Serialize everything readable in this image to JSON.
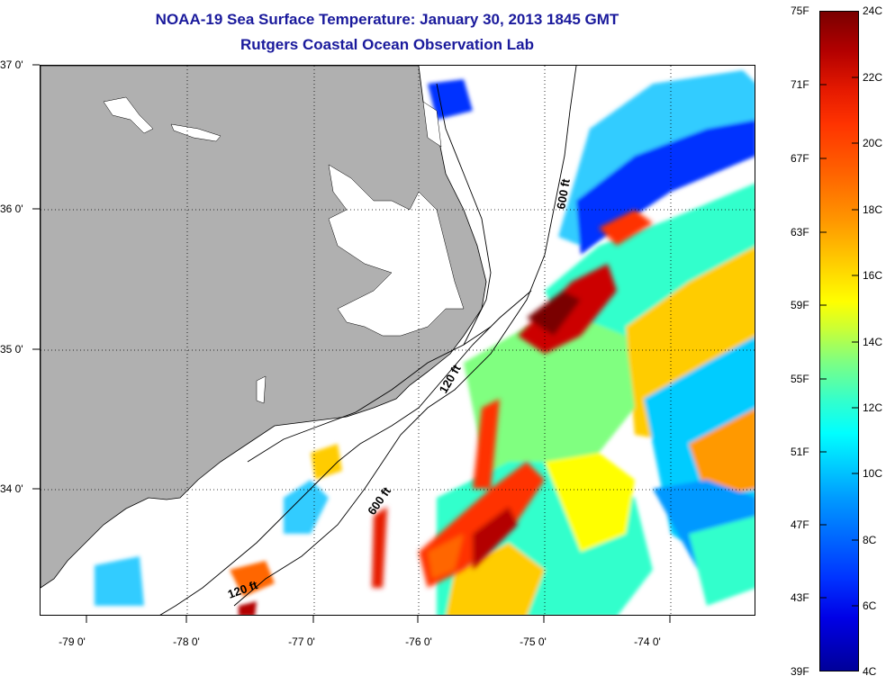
{
  "title": {
    "line1": "NOAA-19 Sea Surface Temperature:  January 30, 2013 1845 GMT",
    "line2": "Rutgers Coastal Ocean Observation Lab"
  },
  "map": {
    "lat_labels": [
      "37 0'",
      "36 0'",
      "35 0'",
      "34 0'"
    ],
    "lon_labels": [
      "-79 0'",
      "-78 0'",
      "-77 0'",
      "-76 0'",
      "-75 0'",
      "-74 0'"
    ],
    "contour_labels": [
      "600 ft",
      "120 ft",
      "600 ft",
      "120 ft"
    ],
    "land_color": "#b0b0b0",
    "cloud_color": "#ffffff"
  },
  "colorbar": {
    "fahrenheit_labels": [
      "75F",
      "71F",
      "67F",
      "63F",
      "59F",
      "55F",
      "51F",
      "47F",
      "43F",
      "39F"
    ],
    "celsius_labels": [
      "24C",
      "22C",
      "20C",
      "18C",
      "16C",
      "14C",
      "12C",
      "10C",
      "8C",
      "6C",
      "4C"
    ],
    "max_color": "#7a0000",
    "min_color": "#000099"
  }
}
